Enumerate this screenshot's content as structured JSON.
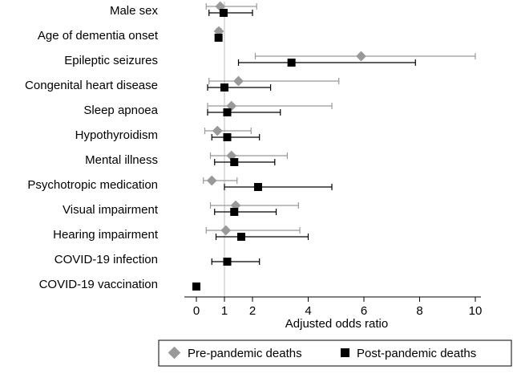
{
  "chart_data": {
    "type": "forest",
    "xlabel": "Adjusted odds ratio",
    "xlim": [
      -0.5,
      10.2
    ],
    "x_ticks": [
      {
        "value": 0,
        "label": "0"
      },
      {
        "value": 1,
        "label": "1"
      },
      {
        "value": 2,
        "label": "2"
      },
      {
        "value": 4,
        "label": "4"
      },
      {
        "value": 6,
        "label": "6"
      },
      {
        "value": 8,
        "label": "8"
      },
      {
        "value": 10,
        "label": "10"
      }
    ],
    "reference_line": 1,
    "categories": [
      "Male sex",
      "Age of dementia onset",
      "Epileptic seizures",
      "Congenital heart disease",
      "Sleep apnoea",
      "Hypothyroidism",
      "Mental illness",
      "Psychotropic medication",
      "Visual impairment",
      "Hearing impairment",
      "COVID-19 infection",
      "COVID-19 vaccination"
    ],
    "series": [
      {
        "name": "Pre-pandemic deaths",
        "color": "#999999",
        "marker": "diamond",
        "points": [
          {
            "est": 0.85,
            "lo": 0.35,
            "hi": 2.15
          },
          {
            "est": 0.8,
            "lo": 0.72,
            "hi": 0.88
          },
          {
            "est": 5.9,
            "lo": 2.1,
            "hi": 10.0
          },
          {
            "est": 1.5,
            "lo": 0.45,
            "hi": 5.1
          },
          {
            "est": 1.25,
            "lo": 0.4,
            "hi": 4.85
          },
          {
            "est": 0.75,
            "lo": 0.3,
            "hi": 1.95
          },
          {
            "est": 1.25,
            "lo": 0.5,
            "hi": 3.25
          },
          {
            "est": 0.55,
            "lo": 0.25,
            "hi": 1.45
          },
          {
            "est": 1.4,
            "lo": 0.5,
            "hi": 3.65
          },
          {
            "est": 1.05,
            "lo": 0.35,
            "hi": 3.7
          }
        ]
      },
      {
        "name": "Post-pandemic deaths",
        "color": "#000000",
        "marker": "square",
        "points": [
          {
            "est": 0.97,
            "lo": 0.45,
            "hi": 2.0
          },
          {
            "est": 0.79,
            "lo": 0.75,
            "hi": 0.84
          },
          {
            "est": 3.4,
            "lo": 1.5,
            "hi": 7.85
          },
          {
            "est": 1.0,
            "lo": 0.4,
            "hi": 2.65
          },
          {
            "est": 1.1,
            "lo": 0.4,
            "hi": 3.0
          },
          {
            "est": 1.1,
            "lo": 0.55,
            "hi": 2.25
          },
          {
            "est": 1.35,
            "lo": 0.65,
            "hi": 2.8
          },
          {
            "est": 2.2,
            "lo": 1.0,
            "hi": 4.85
          },
          {
            "est": 1.35,
            "lo": 0.65,
            "hi": 2.85
          },
          {
            "est": 1.6,
            "lo": 0.7,
            "hi": 4.0
          },
          {
            "est": 1.1,
            "lo": 0.55,
            "hi": 2.25
          },
          {
            "est": 0.0,
            "lo": 0.0,
            "hi": 0.0
          }
        ]
      }
    ],
    "legend_position": "bottom"
  }
}
